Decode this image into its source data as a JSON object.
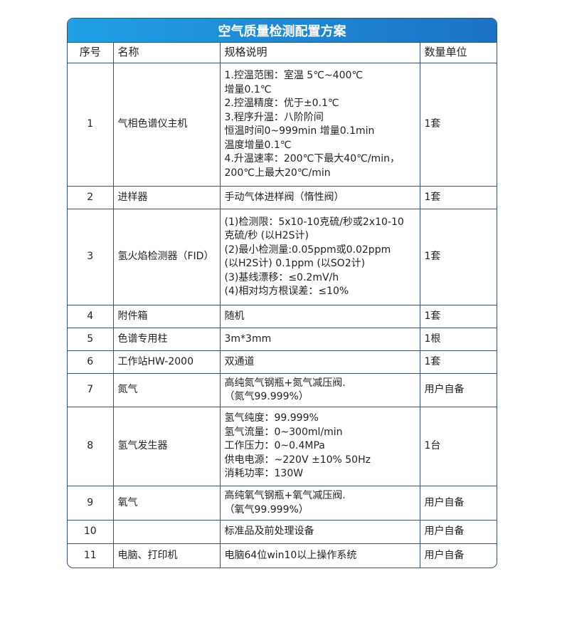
{
  "title": "空气质量检测配置方案",
  "headers": [
    "序号",
    "名称",
    "规格说明",
    "数量单位"
  ],
  "rows": [
    {
      "no": "1",
      "name": "气相色谱仪主机",
      "spec": "1.控温范围：室温 5℃~400℃\n增量0.1℃\n2.控温精度：优于±0.1℃\n3.程序升温：八阶阶间\n恒温时间0~999min 增量0.1min\n温度增量0.1℃\n4.升温速率：200℃下最大40℃/min，\n200℃上最大20℃/min",
      "qty": "1套"
    },
    {
      "no": "2",
      "name": "进样器",
      "spec": "手动气体进样阀（惰性阀）",
      "qty": "1套"
    },
    {
      "no": "3",
      "name": "氢火焰检测器（FID）",
      "spec": "(1)检测限：5x10-10克硫/秒或2x10-10\n克硫/秒 (以H2S计)\n(2)最小检测量:0.05ppm或0.02ppm\n(以H2S计) 0.1ppm (以SO2计)\n(3)基线漂移：≤0.2mV/h\n(4)相对均方根误差：≤10%",
      "qty": "1套"
    },
    {
      "no": "4",
      "name": "附件箱",
      "spec": "随机",
      "qty": "1套"
    },
    {
      "no": "5",
      "name": "色谱专用柱",
      "spec": "3m*3mm",
      "qty": "1根"
    },
    {
      "no": "6",
      "name": "工作站HW-2000",
      "spec": "双通道",
      "qty": "1套"
    },
    {
      "no": "7",
      "name": "氮气",
      "spec": "高纯氮气钢瓶+氮气减压阀.\n（氮气99.999%）",
      "qty": "用户自备"
    },
    {
      "no": "8",
      "name": "氢气发生器",
      "spec": "氢气纯度：99.999%\n氢气流量：0~300ml/min\n工作压力：0~0.4MPa\n供电电源：~220V ±10% 50Hz\n消耗功率：130W",
      "qty": "1台"
    },
    {
      "no": "9",
      "name": "氧气",
      "spec": "高纯氧气钢瓶+氧气减压阀.\n（氧气99.999%）",
      "qty": "用户自备"
    },
    {
      "no": "10",
      "name": "",
      "spec": "标准品及前处理设备",
      "qty": "用户自备"
    },
    {
      "no": "11",
      "name": "电脑、打印机",
      "spec": "电脑64位win10以上操作系统",
      "qty": "用户自备"
    }
  ]
}
